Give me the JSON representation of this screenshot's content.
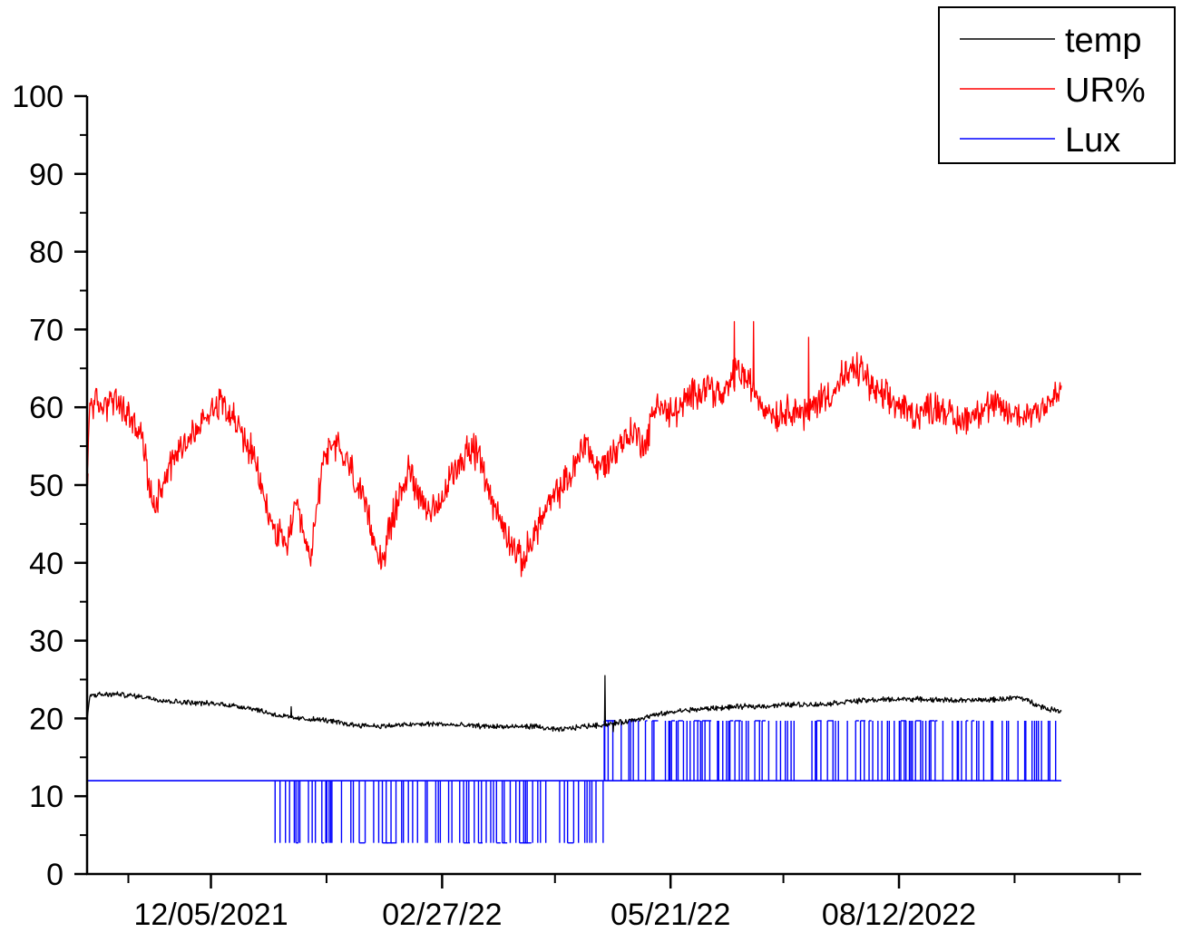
{
  "chart_data": {
    "type": "line",
    "title": "",
    "xlabel": "",
    "ylabel": "",
    "ylim": [
      0,
      100
    ],
    "y_ticks": [
      0,
      10,
      20,
      30,
      40,
      50,
      60,
      70,
      80,
      90,
      100
    ],
    "y_minor_step": 5,
    "x_axis": {
      "start": "2021-10-21",
      "end": "2022-11-08",
      "ticks": [
        {
          "date": "2021-12-05",
          "label": "12/05/2021"
        },
        {
          "date": "2022-02-27",
          "label": "02/27/22"
        },
        {
          "date": "2022-05-21",
          "label": "05/21/22"
        },
        {
          "date": "2022-08-12",
          "label": "08/12/2022"
        }
      ],
      "minor_tick_dates": [
        "2021-11-05",
        "2022-01-16",
        "2022-04-09",
        "2022-07-01",
        "2022-09-23",
        "2022-10-31"
      ]
    },
    "legend": {
      "placement": "top-right"
    },
    "series": [
      {
        "name": "temp",
        "color": "#000000",
        "style": "noisy",
        "x": [
          "2021-10-21",
          "2021-10-22",
          "2021-10-23",
          "2021-11-01",
          "2021-11-10",
          "2021-11-20",
          "2021-11-30",
          "2021-12-10",
          "2021-12-20",
          "2021-12-28",
          "2022-01-05",
          "2022-01-15",
          "2022-01-25",
          "2022-02-05",
          "2022-02-15",
          "2022-02-25",
          "2022-03-05",
          "2022-03-15",
          "2022-03-25",
          "2022-04-01",
          "2022-04-10",
          "2022-04-20",
          "2022-04-27",
          "2022-05-05",
          "2022-05-15",
          "2022-05-25",
          "2022-06-05",
          "2022-06-15",
          "2022-06-25",
          "2022-07-05",
          "2022-07-15",
          "2022-07-25",
          "2022-08-05",
          "2022-08-15",
          "2022-08-25",
          "2022-09-05",
          "2022-09-15",
          "2022-09-25",
          "2022-10-05",
          "2022-10-10"
        ],
        "y": [
          20.0,
          22.8,
          23.0,
          23.1,
          22.8,
          22.2,
          22.0,
          21.8,
          21.3,
          20.5,
          20.0,
          19.8,
          19.2,
          19.0,
          19.2,
          19.3,
          19.1,
          19.0,
          18.9,
          19.0,
          18.5,
          19.0,
          19.2,
          19.6,
          20.4,
          21.0,
          21.3,
          21.5,
          21.6,
          21.8,
          21.8,
          22.2,
          22.4,
          22.5,
          22.4,
          22.3,
          22.4,
          22.7,
          21.2,
          21.0
        ],
        "spikes": [
          [
            "2022-04-27",
            25.5
          ],
          [
            "2022-01-03",
            21.5
          ],
          [
            "2022-04-30",
            18.3
          ]
        ]
      },
      {
        "name": "UR%",
        "color": "#ff0000",
        "style": "noisy",
        "x": [
          "2021-10-21",
          "2021-10-22",
          "2021-10-26",
          "2021-10-30",
          "2021-11-05",
          "2021-11-10",
          "2021-11-14",
          "2021-11-19",
          "2021-11-24",
          "2021-11-30",
          "2021-12-05",
          "2021-12-10",
          "2021-12-14",
          "2021-12-17",
          "2021-12-20",
          "2021-12-23",
          "2021-12-27",
          "2022-01-01",
          "2022-01-05",
          "2022-01-10",
          "2022-01-15",
          "2022-01-20",
          "2022-01-25",
          "2022-01-30",
          "2022-02-05",
          "2022-02-10",
          "2022-02-15",
          "2022-02-20",
          "2022-02-25",
          "2022-03-01",
          "2022-03-05",
          "2022-03-10",
          "2022-03-14",
          "2022-03-18",
          "2022-03-22",
          "2022-03-28",
          "2022-04-03",
          "2022-04-08",
          "2022-04-12",
          "2022-04-16",
          "2022-04-20",
          "2022-04-24",
          "2022-04-28",
          "2022-05-02",
          "2022-05-07",
          "2022-05-12",
          "2022-05-16",
          "2022-05-20",
          "2022-05-25",
          "2022-05-30",
          "2022-06-04",
          "2022-06-09",
          "2022-06-14",
          "2022-06-19",
          "2022-06-24",
          "2022-06-29",
          "2022-07-04",
          "2022-07-09",
          "2022-07-14",
          "2022-07-19",
          "2022-07-24",
          "2022-07-29",
          "2022-08-03",
          "2022-08-08",
          "2022-08-13",
          "2022-08-18",
          "2022-08-23",
          "2022-08-28",
          "2022-09-02",
          "2022-09-07",
          "2022-09-12",
          "2022-09-17",
          "2022-09-22",
          "2022-09-27",
          "2022-10-02",
          "2022-10-07",
          "2022-10-10"
        ],
        "y": [
          50,
          61,
          60,
          61,
          59,
          56,
          47,
          52,
          55,
          57,
          60,
          61,
          58,
          56,
          54,
          50,
          45,
          42,
          47,
          40,
          54,
          55,
          52,
          47,
          40,
          47,
          52,
          48,
          46,
          50,
          53,
          55,
          52,
          47,
          44,
          40,
          45,
          48,
          50,
          52,
          56,
          52,
          53,
          55,
          57,
          55,
          61,
          59,
          60,
          62,
          63,
          61,
          65,
          63,
          60,
          59,
          60,
          59,
          61,
          62,
          64,
          65,
          62,
          61,
          60,
          59,
          60,
          60,
          58,
          59,
          60,
          60,
          59,
          59,
          60,
          61,
          62
        ],
        "spikes": [
          [
            "2021-10-21",
            50
          ],
          [
            "2022-04-27",
            51
          ],
          [
            "2022-06-13",
            71
          ],
          [
            "2022-06-20",
            71
          ],
          [
            "2022-07-10",
            69
          ],
          [
            "2022-07-22",
            66
          ]
        ]
      },
      {
        "name": "Lux",
        "color": "#0000ff",
        "style": "step",
        "base_levels": [
          {
            "from": "2021-10-21",
            "to": "2022-04-27",
            "y": 12
          },
          {
            "from": "2022-04-27",
            "to": "2022-10-10",
            "y": 12
          }
        ],
        "pulse_segments": [
          {
            "from": "2021-12-27",
            "to": "2022-04-27",
            "base": 12,
            "low": 4
          },
          {
            "from": "2022-04-27",
            "to": "2022-10-10",
            "base": 12,
            "high": 19.7
          }
        ],
        "edge_pulses": [
          [
            "2021-10-21",
            19.7
          ],
          [
            "2022-04-27",
            19.7
          ]
        ]
      }
    ]
  }
}
